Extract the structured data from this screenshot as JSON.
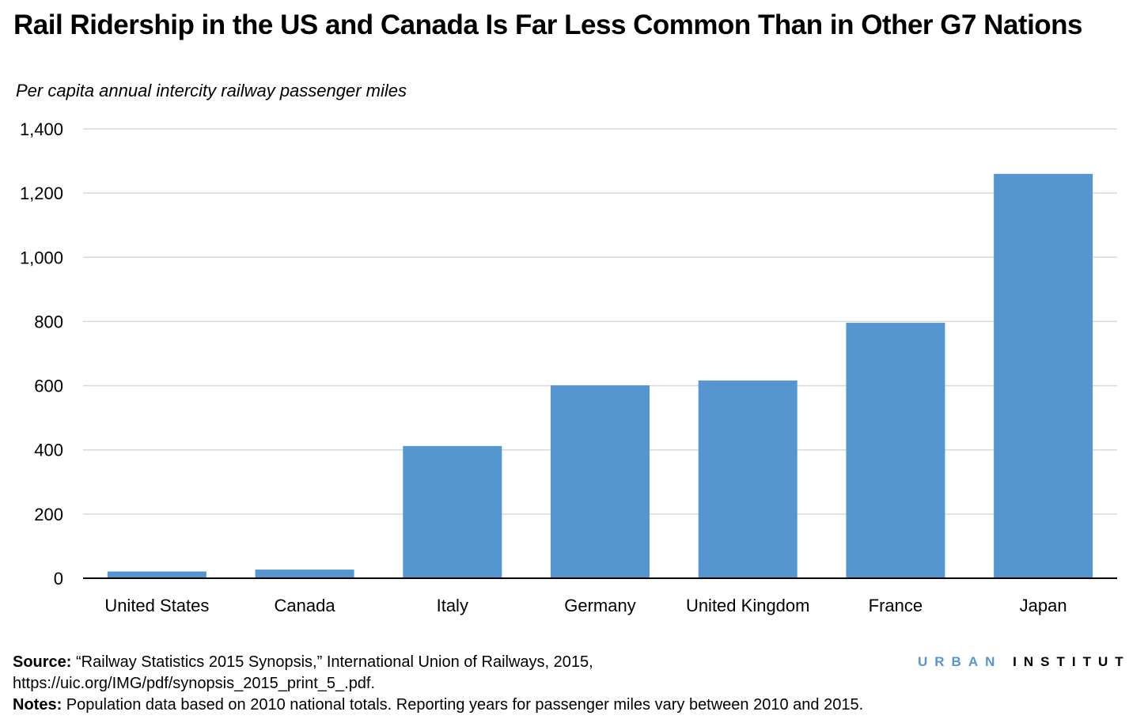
{
  "chart_data": {
    "type": "bar",
    "title": "Rail Ridership in the US and Canada Is Far Less Common Than in Other G7 Nations",
    "ylabel": "Per capita annual intercity railway passenger miles",
    "categories": [
      "United States",
      "Canada",
      "Italy",
      "Germany",
      "United Kingdom",
      "France",
      "Japan"
    ],
    "values": [
      21,
      27,
      412,
      601,
      616,
      796,
      1260
    ],
    "ylim": [
      0,
      1400
    ],
    "yticks": [
      0,
      200,
      400,
      600,
      800,
      1000,
      1200,
      1400
    ],
    "ytick_labels": [
      "0",
      "200",
      "400",
      "600",
      "800",
      "1,000",
      "1,200",
      "1,400"
    ],
    "grid": true,
    "bar_color": "#5596d1"
  },
  "footer": {
    "source_label": "Source:",
    "source_text": " “Railway Statistics 2015 Synopsis,” International Union of Railways, 2015,",
    "source_url": "https://uic.org/IMG/pdf/synopsis_2015_print_5_.pdf.",
    "notes_label": "Notes:",
    "notes_text": " Population data based on 2010 national totals. Reporting years for passenger miles vary between 2010 and 2015.",
    "logo_part1": "URBAN",
    "logo_part2": "INSTITUTE",
    "logo_color": "#5596d1"
  }
}
